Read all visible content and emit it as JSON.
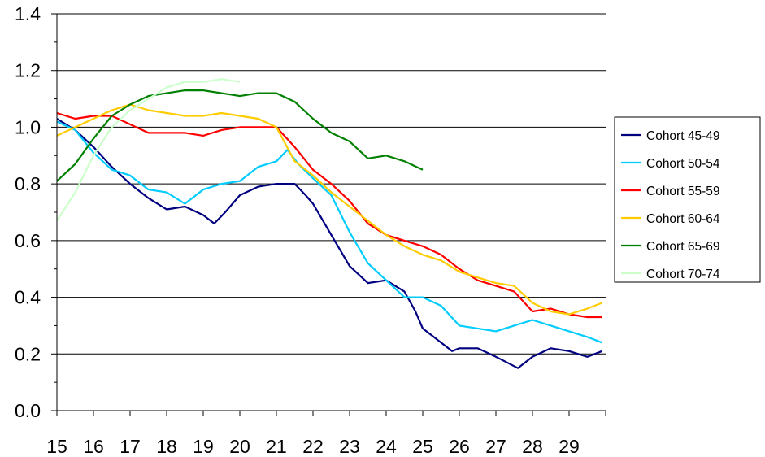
{
  "chart_data": {
    "type": "line",
    "title": "",
    "xlabel": "",
    "ylabel": "",
    "xlim": [
      15,
      30
    ],
    "ylim": [
      0,
      1.4
    ],
    "x_ticks": [
      "15",
      "16",
      "17",
      "18",
      "19",
      "20",
      "21",
      "22",
      "23",
      "24",
      "25",
      "26",
      "27",
      "28",
      "29"
    ],
    "y_ticks": [
      "0.0",
      "0.2",
      "0.4",
      "0.6",
      "0.8",
      "1.0",
      "1.2",
      "1.4"
    ],
    "grid": "horizontal major gridlines",
    "legend_position": "right",
    "series": [
      {
        "name": "Cohort 45-49",
        "color": "#000080",
        "points": [
          [
            15.0,
            1.03
          ],
          [
            15.5,
            0.99
          ],
          [
            16.0,
            0.93
          ],
          [
            16.5,
            0.86
          ],
          [
            17.0,
            0.8
          ],
          [
            17.5,
            0.75
          ],
          [
            18.0,
            0.71
          ],
          [
            18.5,
            0.72
          ],
          [
            19.0,
            0.69
          ],
          [
            19.3,
            0.66
          ],
          [
            19.6,
            0.7
          ],
          [
            20.0,
            0.76
          ],
          [
            20.5,
            0.79
          ],
          [
            21.0,
            0.8
          ],
          [
            21.5,
            0.8
          ],
          [
            21.8,
            0.76
          ],
          [
            22.0,
            0.73
          ],
          [
            22.5,
            0.62
          ],
          [
            23.0,
            0.51
          ],
          [
            23.5,
            0.45
          ],
          [
            24.0,
            0.46
          ],
          [
            24.5,
            0.42
          ],
          [
            24.8,
            0.35
          ],
          [
            25.0,
            0.29
          ],
          [
            25.5,
            0.24
          ],
          [
            25.8,
            0.21
          ],
          [
            26.0,
            0.22
          ],
          [
            26.5,
            0.22
          ],
          [
            27.0,
            0.19
          ],
          [
            27.3,
            0.17
          ],
          [
            27.6,
            0.15
          ],
          [
            28.0,
            0.19
          ],
          [
            28.5,
            0.22
          ],
          [
            29.0,
            0.21
          ],
          [
            29.5,
            0.19
          ],
          [
            29.9,
            0.21
          ]
        ]
      },
      {
        "name": "Cohort 50-54",
        "color": "#00CCFF",
        "points": [
          [
            15.0,
            1.02
          ],
          [
            15.5,
            0.99
          ],
          [
            16.0,
            0.91
          ],
          [
            16.5,
            0.85
          ],
          [
            17.0,
            0.83
          ],
          [
            17.5,
            0.78
          ],
          [
            18.0,
            0.77
          ],
          [
            18.5,
            0.73
          ],
          [
            19.0,
            0.78
          ],
          [
            19.5,
            0.8
          ],
          [
            20.0,
            0.81
          ],
          [
            20.5,
            0.86
          ],
          [
            21.0,
            0.88
          ],
          [
            21.3,
            0.92
          ],
          [
            21.6,
            0.87
          ],
          [
            22.0,
            0.82
          ],
          [
            22.5,
            0.76
          ],
          [
            23.0,
            0.63
          ],
          [
            23.5,
            0.52
          ],
          [
            24.0,
            0.46
          ],
          [
            24.5,
            0.4
          ],
          [
            25.0,
            0.4
          ],
          [
            25.5,
            0.37
          ],
          [
            26.0,
            0.3
          ],
          [
            26.5,
            0.29
          ],
          [
            27.0,
            0.28
          ],
          [
            27.5,
            0.3
          ],
          [
            28.0,
            0.32
          ],
          [
            28.5,
            0.3
          ],
          [
            29.0,
            0.28
          ],
          [
            29.5,
            0.26
          ],
          [
            29.9,
            0.24
          ]
        ]
      },
      {
        "name": "Cohort 55-59",
        "color": "#FF0000",
        "points": [
          [
            15.0,
            1.05
          ],
          [
            15.5,
            1.03
          ],
          [
            16.0,
            1.04
          ],
          [
            16.5,
            1.04
          ],
          [
            17.0,
            1.01
          ],
          [
            17.5,
            0.98
          ],
          [
            18.0,
            0.98
          ],
          [
            18.5,
            0.98
          ],
          [
            19.0,
            0.97
          ],
          [
            19.5,
            0.99
          ],
          [
            20.0,
            1.0
          ],
          [
            20.5,
            1.0
          ],
          [
            21.0,
            1.0
          ],
          [
            21.5,
            0.93
          ],
          [
            22.0,
            0.85
          ],
          [
            22.5,
            0.8
          ],
          [
            23.0,
            0.74
          ],
          [
            23.5,
            0.66
          ],
          [
            24.0,
            0.62
          ],
          [
            24.5,
            0.6
          ],
          [
            25.0,
            0.58
          ],
          [
            25.5,
            0.55
          ],
          [
            26.0,
            0.5
          ],
          [
            26.5,
            0.46
          ],
          [
            27.0,
            0.44
          ],
          [
            27.5,
            0.42
          ],
          [
            28.0,
            0.35
          ],
          [
            28.5,
            0.36
          ],
          [
            29.0,
            0.34
          ],
          [
            29.5,
            0.33
          ],
          [
            29.9,
            0.33
          ]
        ]
      },
      {
        "name": "Cohort 60-64",
        "color": "#FFCC00",
        "points": [
          [
            15.0,
            0.97
          ],
          [
            15.5,
            1.0
          ],
          [
            16.0,
            1.03
          ],
          [
            16.5,
            1.06
          ],
          [
            17.0,
            1.08
          ],
          [
            17.5,
            1.06
          ],
          [
            18.0,
            1.05
          ],
          [
            18.5,
            1.04
          ],
          [
            19.0,
            1.04
          ],
          [
            19.5,
            1.05
          ],
          [
            20.0,
            1.04
          ],
          [
            20.5,
            1.03
          ],
          [
            21.0,
            1.0
          ],
          [
            21.5,
            0.88
          ],
          [
            22.0,
            0.83
          ],
          [
            22.5,
            0.77
          ],
          [
            23.0,
            0.72
          ],
          [
            23.5,
            0.67
          ],
          [
            24.0,
            0.62
          ],
          [
            24.5,
            0.58
          ],
          [
            25.0,
            0.55
          ],
          [
            25.5,
            0.53
          ],
          [
            26.0,
            0.49
          ],
          [
            26.5,
            0.47
          ],
          [
            27.0,
            0.45
          ],
          [
            27.5,
            0.44
          ],
          [
            28.0,
            0.38
          ],
          [
            28.5,
            0.35
          ],
          [
            29.0,
            0.34
          ],
          [
            29.5,
            0.36
          ],
          [
            29.9,
            0.38
          ]
        ]
      },
      {
        "name": "Cohort 65-69",
        "color": "#008000",
        "points": [
          [
            15.0,
            0.81
          ],
          [
            15.5,
            0.87
          ],
          [
            16.0,
            0.96
          ],
          [
            16.5,
            1.04
          ],
          [
            17.0,
            1.08
          ],
          [
            17.5,
            1.11
          ],
          [
            18.0,
            1.12
          ],
          [
            18.5,
            1.13
          ],
          [
            19.0,
            1.13
          ],
          [
            19.5,
            1.12
          ],
          [
            20.0,
            1.11
          ],
          [
            20.5,
            1.12
          ],
          [
            21.0,
            1.12
          ],
          [
            21.5,
            1.09
          ],
          [
            22.0,
            1.03
          ],
          [
            22.5,
            0.98
          ],
          [
            23.0,
            0.95
          ],
          [
            23.5,
            0.89
          ],
          [
            24.0,
            0.9
          ],
          [
            24.5,
            0.88
          ],
          [
            25.0,
            0.85
          ]
        ]
      },
      {
        "name": "Cohort 70-74",
        "color": "#CCFFCC",
        "points": [
          [
            15.0,
            0.67
          ],
          [
            15.5,
            0.77
          ],
          [
            16.0,
            0.9
          ],
          [
            16.5,
            1.0
          ],
          [
            17.0,
            1.06
          ],
          [
            17.5,
            1.1
          ],
          [
            18.0,
            1.14
          ],
          [
            18.5,
            1.16
          ],
          [
            19.0,
            1.16
          ],
          [
            19.5,
            1.17
          ],
          [
            20.0,
            1.16
          ]
        ]
      }
    ]
  }
}
